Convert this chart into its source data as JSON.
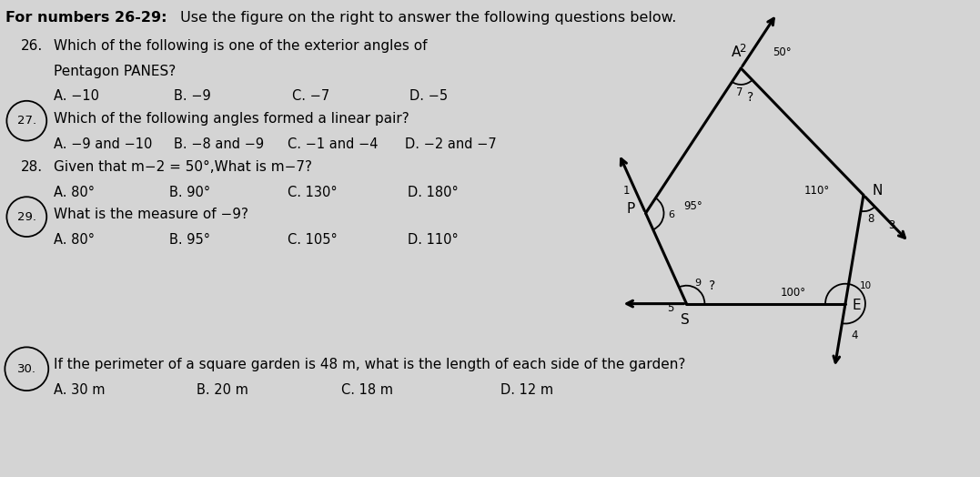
{
  "bg_color": "#d4d4d4",
  "title_bold": "For numbers 26-29:",
  "title_rest": " Use the figure on the right to answer the following questions below.",
  "q26_line1": "Which of the following is one of the exterior angles of",
  "q26_line2": "Pentagon PANES?",
  "q26_choices": [
    "A. −10",
    "B. −9",
    "C. −7",
    "D. −5"
  ],
  "q27_text": "Which of the following angles formed a linear pair?",
  "q27_choices": [
    "A. −9 and −10",
    "B. −8 and −9",
    "C. −1 and −4",
    "D. −2 and −7"
  ],
  "q28_text": "Given that m−2 = 50°,What is m−7?",
  "q28_choices": [
    "A. 80°",
    "B. 90°",
    "C. 130°",
    "D. 180°"
  ],
  "q29_text": "What is the measure of −9?",
  "q29_choices": [
    "A. 80°",
    "B. 95°",
    "C. 105°",
    "D. 110°"
  ],
  "q30_text": "If the perimeter of a square garden is 48 m, what is the length of each side of the garden?",
  "q30_choices": [
    "A. 30 m",
    "B. 20 m",
    "C. 18 m",
    "D. 12 m"
  ],
  "P": [
    7.1,
    2.9
  ],
  "A": [
    8.15,
    4.5
  ],
  "N": [
    9.5,
    3.1
  ],
  "E": [
    9.3,
    1.9
  ],
  "S": [
    7.55,
    1.9
  ]
}
